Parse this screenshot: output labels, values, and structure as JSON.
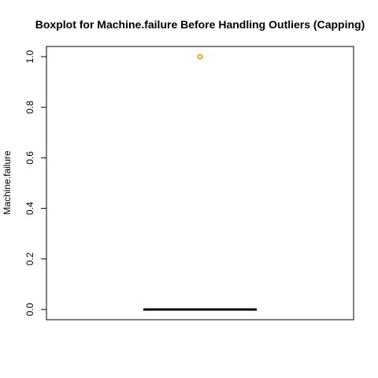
{
  "chart_data": {
    "type": "boxplot",
    "title": "Boxplot for Machine.failure Before Handling Outliers (Capping)",
    "xlabel": "",
    "ylabel": "Machine.failure",
    "ylim": [
      0.0,
      1.0
    ],
    "yticks": [
      "0.0",
      "0.2",
      "0.4",
      "0.6",
      "0.8",
      "1.0"
    ],
    "grid": false,
    "box": {
      "min": 0.0,
      "q1": 0.0,
      "median": 0.0,
      "q3": 0.0,
      "max": 0.0
    },
    "outliers": [
      1.0
    ],
    "colors": {
      "outlier": "#ff8c00",
      "median": "#000000",
      "frame": "#000000"
    }
  }
}
